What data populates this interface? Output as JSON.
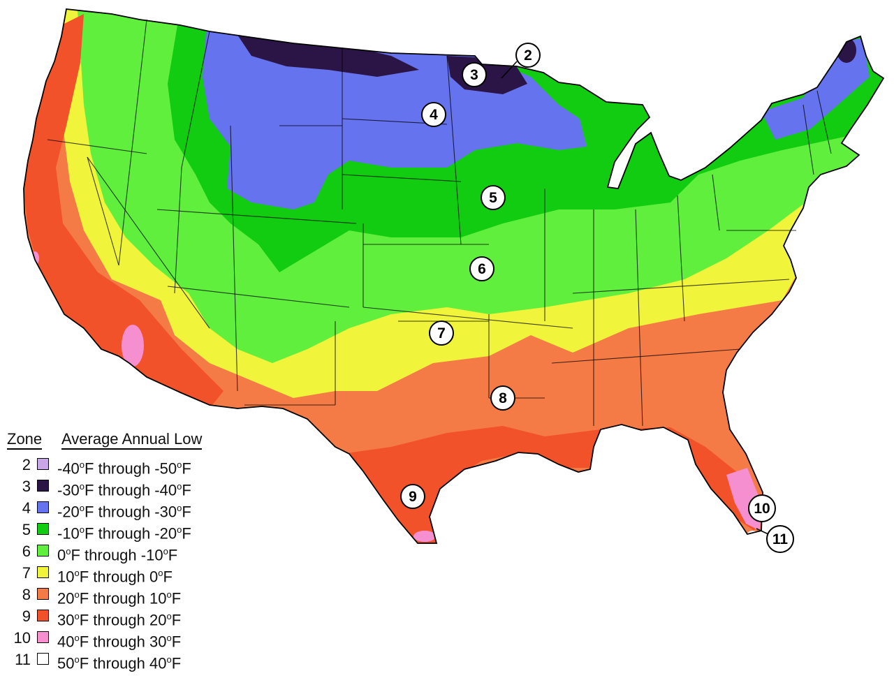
{
  "legend": {
    "zone_header": "Zone",
    "range_header": "Average Annual Low",
    "zones": [
      {
        "zone": "2",
        "range": "-40°F through -50°F",
        "color": "#c9a6e6"
      },
      {
        "zone": "3",
        "range": "-30°F through -40°F",
        "color": "#2b1446"
      },
      {
        "zone": "4",
        "range": "-20°F through -30°F",
        "color": "#6673ee"
      },
      {
        "zone": "5",
        "range": "-10°F through -20°F",
        "color": "#12cc12"
      },
      {
        "zone": "6",
        "range": "0°F through -10°F",
        "color": "#5fef3c"
      },
      {
        "zone": "7",
        "range": "10°F through 0°F",
        "color": "#f0f43a"
      },
      {
        "zone": "8",
        "range": "20°F through 10°F",
        "color": "#f47b45"
      },
      {
        "zone": "9",
        "range": "30°F through 20°F",
        "color": "#f2522a"
      },
      {
        "zone": "10",
        "range": "40°F through 30°F",
        "color": "#f58fd0"
      },
      {
        "zone": "11",
        "range": "50°F through 40°F",
        "color": "#ffffff"
      }
    ]
  },
  "map_labels": [
    "2",
    "3",
    "4",
    "5",
    "6",
    "7",
    "8",
    "9",
    "10",
    "11"
  ]
}
